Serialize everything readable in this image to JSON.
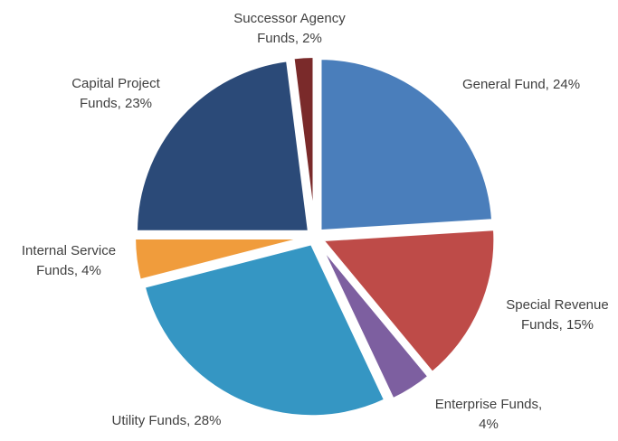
{
  "chart_data": {
    "type": "pie",
    "title": "",
    "start_angle_deg": 0,
    "direction": "clockwise",
    "slices": [
      {
        "label_lines": [
          "General Fund, 24%"
        ],
        "value": 24,
        "color": "#4a7ebb"
      },
      {
        "label_lines": [
          "Special Revenue",
          "Funds, 15%"
        ],
        "value": 15,
        "color": "#be4b48"
      },
      {
        "label_lines": [
          "Enterprise Funds,",
          "4%"
        ],
        "value": 4,
        "color": "#7d5fa0"
      },
      {
        "label_lines": [
          "Utility Funds, 28%"
        ],
        "value": 28,
        "color": "#3596c3"
      },
      {
        "label_lines": [
          "Internal Service",
          "Funds, 4%"
        ],
        "value": 4,
        "color": "#f09c3c"
      },
      {
        "label_lines": [
          "Capital Project",
          "Funds, 23%"
        ],
        "value": 23,
        "color": "#2b4a78"
      },
      {
        "label_lines": [
          "Successor Agency",
          "Funds, 2%"
        ],
        "value": 2,
        "color": "#7a2a2a"
      }
    ],
    "legend": "none",
    "exploded": true
  }
}
